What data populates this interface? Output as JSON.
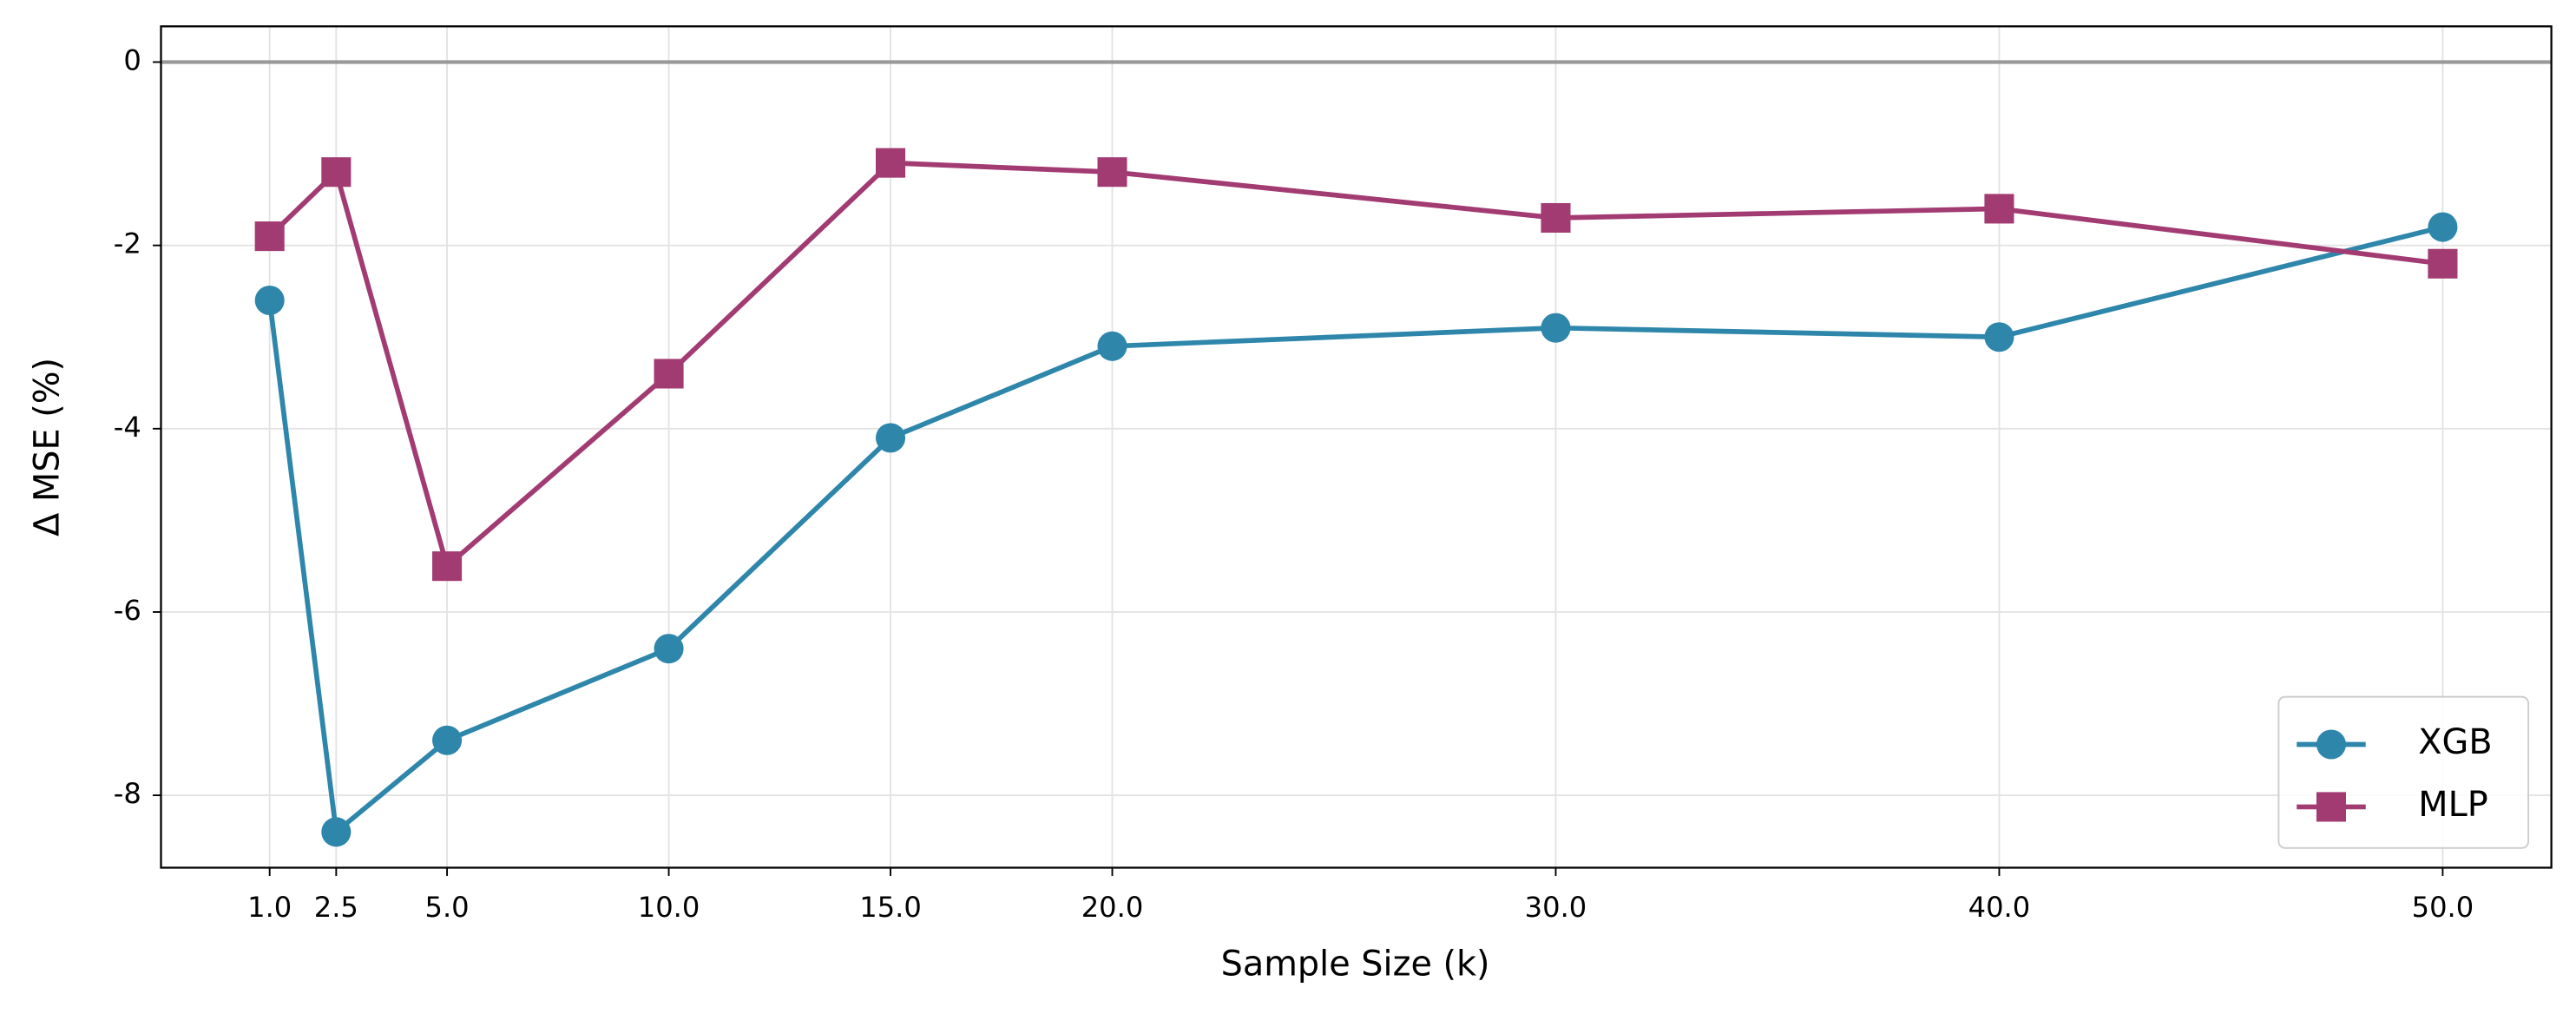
{
  "chart_data": {
    "type": "line",
    "x_label": "Sample Size (k)",
    "y_label": "Δ MSE (%)",
    "x": [
      1,
      2.5,
      5,
      10,
      15,
      20,
      30,
      40,
      50
    ],
    "series": [
      {
        "name": "XGB",
        "color": "#2e86ab",
        "marker": "circle",
        "values": [
          -2.6,
          -8.4,
          -7.4,
          -6.4,
          -4.1,
          -3.1,
          -2.9,
          -3.0,
          -1.8
        ]
      },
      {
        "name": "MLP",
        "color": "#a23b72",
        "marker": "square",
        "values": [
          -1.9,
          -1.2,
          -5.5,
          -3.4,
          -1.1,
          -1.2,
          -1.7,
          -1.6,
          -2.2
        ]
      }
    ],
    "xlim": [
      -1.45,
      52.45
    ],
    "ylim": [
      -8.79,
      0.39
    ],
    "xticks": [
      {
        "value": 1,
        "label": "1.0"
      },
      {
        "value": 2.5,
        "label": "2.5"
      },
      {
        "value": 5,
        "label": "5.0"
      },
      {
        "value": 10,
        "label": "10.0"
      },
      {
        "value": 15,
        "label": "15.0"
      },
      {
        "value": 20,
        "label": "20.0"
      },
      {
        "value": 30,
        "label": "30.0"
      },
      {
        "value": 40,
        "label": "40.0"
      },
      {
        "value": 50,
        "label": "50.0"
      }
    ],
    "yticks": [
      -8,
      -6,
      -4,
      -2,
      0
    ],
    "reference_line": 0,
    "grid": true,
    "legend": "lower right"
  }
}
